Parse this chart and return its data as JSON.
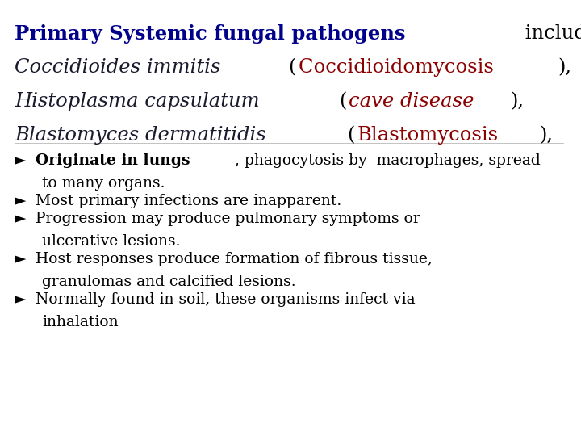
{
  "bg_color": "#ffffff",
  "blue_bold": "#00008B",
  "black": "#000000",
  "dark_navy": "#1a1a2e",
  "red": "#8B0000",
  "title_bold": "Primary Systemic fungal pathogens",
  "title_normal": " include:",
  "line2_italic": "Coccidioides immitis ",
  "line2_paren": "(",
  "line2_red": "Coccidioidomycosis ",
  "line2_end": "),",
  "line3_italic": "Histoplasma capsulatum ",
  "line3_paren": "(",
  "line3_red": "cave disease",
  "line3_end": "),",
  "line4_italic": "Blastomyces dermatitidis ",
  "line4_paren": "(",
  "line4_red": "Blastomycosis",
  "line4_end": "),",
  "b1_bold": "Originate in lungs",
  "b1_normal": ", phagocytosis by  macrophages, spread",
  "b1_cont": "to many organs.",
  "b2": "Most primary infections are inapparent.",
  "b3_1": "Progression may produce pulmonary symptoms or",
  "b3_2": "ulcerative lesions.",
  "b4_1": "Host responses produce formation of fibrous tissue,",
  "b4_2": "granulomas and calcified lesions.",
  "b5_1": "Normally found in soil, these organisms infect via",
  "b5_2": "inhalation",
  "header_fontsize": 17.5,
  "bullet_fontsize": 13.5,
  "bullet_char": "►"
}
